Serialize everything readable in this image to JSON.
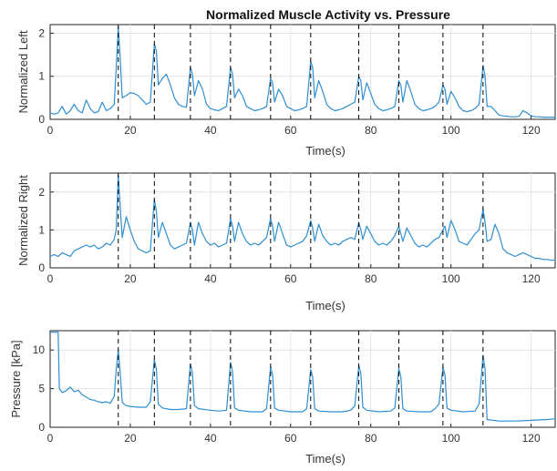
{
  "chart_data": {
    "type": "line",
    "title": "Normalized Muscle Activity vs. Pressure",
    "x_unit_label": "Time(s)",
    "event_lines_x": [
      17,
      26,
      35,
      45,
      55,
      65,
      77,
      87,
      98,
      108
    ],
    "grid": true,
    "color": "#2f8fd0",
    "panels": [
      {
        "id": "left",
        "ylabel": "Normalized Left",
        "xlabel": "Time(s)",
        "xlim": [
          0,
          126
        ],
        "ylim": [
          0,
          2.2
        ],
        "xticks": [
          0,
          20,
          40,
          60,
          80,
          100,
          120
        ],
        "yticks": [
          0,
          1,
          2
        ],
        "series": [
          {
            "x": [
              0,
              1,
              2,
              3,
              4,
              5,
              6,
              7,
              8,
              9,
              10,
              11,
              12,
              13,
              14,
              15,
              16,
              16.5,
              17,
              17.5,
              18,
              19,
              20,
              21,
              22,
              23,
              24,
              25,
              26,
              26.5,
              27,
              28,
              29,
              30,
              31,
              32,
              33,
              34,
              35,
              35.5,
              36,
              37,
              38,
              39,
              40,
              41,
              42,
              43,
              44,
              45,
              45.5,
              46,
              47,
              48,
              49,
              50,
              51,
              52,
              53,
              54,
              55,
              55.5,
              56,
              57,
              58,
              59,
              60,
              61,
              62,
              63,
              64,
              65,
              65.5,
              66,
              67,
              68,
              69,
              70,
              71,
              72,
              73,
              74,
              75,
              76,
              77,
              77.5,
              78,
              79,
              80,
              81,
              82,
              83,
              84,
              85,
              86,
              87,
              87.5,
              88,
              89,
              90,
              91,
              92,
              93,
              94,
              95,
              96,
              97,
              98,
              98.5,
              99,
              100,
              101,
              102,
              103,
              104,
              105,
              106,
              107,
              108,
              108.5,
              109,
              110,
              111,
              112,
              113,
              114,
              115,
              116,
              117,
              118,
              119,
              120,
              121,
              122,
              123,
              124,
              125,
              126
            ],
            "y": [
              0.15,
              0.12,
              0.15,
              0.3,
              0.12,
              0.2,
              0.35,
              0.2,
              0.15,
              0.45,
              0.25,
              0.15,
              0.18,
              0.4,
              0.2,
              0.25,
              0.35,
              1.2,
              2.15,
              1.4,
              0.5,
              0.55,
              0.62,
              0.6,
              0.55,
              0.45,
              0.35,
              0.4,
              1.75,
              1.6,
              0.8,
              0.95,
              1.05,
              0.8,
              0.5,
              0.35,
              0.3,
              0.28,
              1.2,
              1.05,
              0.55,
              0.9,
              0.7,
              0.35,
              0.25,
              0.22,
              0.2,
              0.25,
              0.3,
              1.2,
              1.05,
              0.5,
              0.7,
              0.55,
              0.3,
              0.25,
              0.2,
              0.22,
              0.25,
              0.3,
              0.95,
              0.85,
              0.4,
              0.7,
              0.55,
              0.3,
              0.25,
              0.2,
              0.22,
              0.25,
              0.3,
              1.35,
              1.2,
              0.5,
              0.9,
              0.65,
              0.35,
              0.25,
              0.2,
              0.22,
              0.25,
              0.3,
              0.35,
              0.4,
              1.0,
              0.9,
              0.45,
              0.85,
              0.6,
              0.35,
              0.25,
              0.2,
              0.22,
              0.25,
              0.3,
              0.9,
              0.8,
              0.4,
              0.9,
              0.65,
              0.35,
              0.25,
              0.2,
              0.22,
              0.25,
              0.3,
              0.4,
              0.8,
              0.7,
              0.35,
              0.65,
              0.5,
              0.3,
              0.2,
              0.18,
              0.2,
              0.25,
              0.35,
              1.25,
              1.0,
              0.3,
              0.3,
              0.2,
              0.1,
              0.08,
              0.07,
              0.06,
              0.06,
              0.07,
              0.2,
              0.15,
              0.08,
              0.06,
              0.06,
              0.05,
              0.05,
              0.05,
              0.05
            ]
          }
        ]
      },
      {
        "id": "right",
        "ylabel": "Normalized Right",
        "xlabel": "Time(s)",
        "xlim": [
          0,
          126
        ],
        "ylim": [
          0,
          2.5
        ],
        "xticks": [
          0,
          20,
          40,
          60,
          80,
          100,
          120
        ],
        "yticks": [
          0,
          1,
          2
        ],
        "series": [
          {
            "x": [
              0,
              1,
              2,
              3,
              4,
              5,
              6,
              7,
              8,
              9,
              10,
              11,
              12,
              13,
              14,
              15,
              16,
              16.5,
              17,
              17.5,
              18,
              19,
              20,
              21,
              22,
              23,
              24,
              25,
              26,
              26.5,
              27,
              28,
              29,
              30,
              31,
              32,
              33,
              34,
              35,
              35.5,
              36,
              37,
              38,
              39,
              40,
              41,
              42,
              43,
              44,
              45,
              45.5,
              46,
              47,
              48,
              49,
              50,
              51,
              52,
              53,
              54,
              55,
              55.5,
              56,
              57,
              58,
              59,
              60,
              61,
              62,
              63,
              64,
              65,
              65.5,
              66,
              67,
              68,
              69,
              70,
              71,
              72,
              73,
              74,
              75,
              76,
              77,
              77.5,
              78,
              79,
              80,
              81,
              82,
              83,
              84,
              85,
              86,
              87,
              87.5,
              88,
              89,
              90,
              91,
              92,
              93,
              94,
              95,
              96,
              97,
              98,
              98.5,
              99,
              100,
              101,
              102,
              103,
              104,
              105,
              106,
              107,
              108,
              108.5,
              109,
              110,
              111,
              112,
              113,
              114,
              115,
              116,
              117,
              118,
              119,
              120,
              121,
              122,
              123,
              124,
              125,
              126
            ],
            "y": [
              0.3,
              0.35,
              0.3,
              0.4,
              0.35,
              0.3,
              0.45,
              0.5,
              0.55,
              0.6,
              0.55,
              0.6,
              0.5,
              0.55,
              0.65,
              0.6,
              0.75,
              1.0,
              2.45,
              1.6,
              0.8,
              1.35,
              1.0,
              0.7,
              0.5,
              0.45,
              0.4,
              0.45,
              1.8,
              1.5,
              0.8,
              1.2,
              0.9,
              0.6,
              0.5,
              0.55,
              0.6,
              0.65,
              1.2,
              1.0,
              0.6,
              1.2,
              0.9,
              0.7,
              0.6,
              0.65,
              0.55,
              0.6,
              0.65,
              1.3,
              1.1,
              0.7,
              1.2,
              0.9,
              0.7,
              0.6,
              0.65,
              0.6,
              0.7,
              0.8,
              1.3,
              1.1,
              0.7,
              1.2,
              0.9,
              0.6,
              0.55,
              0.6,
              0.65,
              0.7,
              0.85,
              1.25,
              1.05,
              0.7,
              1.15,
              0.85,
              0.7,
              0.6,
              0.65,
              0.6,
              0.7,
              0.75,
              0.8,
              0.75,
              1.2,
              1.0,
              0.75,
              1.1,
              0.9,
              0.7,
              0.6,
              0.65,
              0.6,
              0.7,
              0.85,
              1.1,
              0.9,
              0.7,
              1.05,
              0.85,
              0.65,
              0.55,
              0.6,
              0.55,
              0.65,
              0.75,
              0.8,
              1.0,
              1.1,
              0.8,
              1.25,
              1.0,
              0.7,
              0.65,
              0.6,
              0.75,
              0.9,
              1.0,
              1.55,
              1.2,
              0.7,
              0.75,
              1.15,
              0.9,
              0.5,
              0.4,
              0.35,
              0.3,
              0.35,
              0.4,
              0.35,
              0.3,
              0.25,
              0.25,
              0.22,
              0.22,
              0.2,
              0.2
            ]
          }
        ]
      },
      {
        "id": "pressure",
        "ylabel": "Pressure [kPa]",
        "xlabel": "Time(s)",
        "xlim": [
          0,
          126
        ],
        "ylim": [
          0,
          12.5
        ],
        "xticks": [
          0,
          20,
          40,
          60,
          80,
          100,
          120
        ],
        "yticks": [
          0,
          5,
          10
        ],
        "series": [
          {
            "x": [
              0,
              1,
              2,
              2.3,
              3,
              4,
              5,
              6,
              7,
              8,
              9,
              10,
              11,
              12,
              13,
              14,
              15,
              16,
              16.5,
              17,
              17.5,
              18,
              19,
              20,
              22,
              24,
              25,
              26,
              26.5,
              27,
              28,
              30,
              32,
              34,
              35,
              35.5,
              36,
              37,
              40,
              42,
              44,
              45,
              45.5,
              46,
              47,
              50,
              53,
              54,
              55,
              55.5,
              56,
              57,
              60,
              63,
              64,
              65,
              65.5,
              66,
              67,
              70,
              73,
              75,
              76,
              77,
              77.5,
              78,
              79,
              82,
              85,
              86,
              87,
              87.5,
              88,
              89,
              92,
              95,
              96,
              97,
              98,
              98.5,
              99,
              100,
              103,
              106,
              107,
              108,
              108.5,
              109,
              112,
              116,
              120,
              124,
              126
            ],
            "y": [
              12.3,
              12.3,
              12.3,
              5.0,
              4.5,
              4.7,
              5.2,
              4.6,
              4.8,
              4.2,
              3.9,
              3.6,
              3.5,
              3.3,
              3.2,
              3.3,
              3.1,
              4.0,
              7.5,
              10.0,
              7.0,
              3.2,
              2.8,
              2.7,
              2.6,
              2.6,
              3.3,
              8.8,
              7.5,
              3.0,
              2.5,
              2.3,
              2.3,
              2.4,
              8.2,
              7.0,
              2.8,
              2.4,
              2.2,
              2.1,
              2.2,
              8.4,
              7.2,
              2.5,
              2.2,
              2.0,
              2.0,
              2.4,
              7.8,
              6.8,
              2.5,
              2.2,
              2.0,
              2.0,
              2.4,
              7.5,
              6.5,
              2.4,
              2.1,
              2.0,
              2.0,
              2.2,
              2.8,
              8.0,
              7.0,
              2.6,
              2.2,
              2.0,
              2.1,
              2.5,
              7.6,
              6.6,
              2.4,
              2.1,
              2.0,
              2.0,
              2.4,
              3.0,
              7.8,
              6.8,
              2.5,
              2.2,
              2.0,
              2.1,
              3.0,
              9.3,
              7.5,
              1.0,
              0.8,
              0.8,
              0.9,
              1.0,
              1.1
            ]
          }
        ]
      }
    ]
  }
}
